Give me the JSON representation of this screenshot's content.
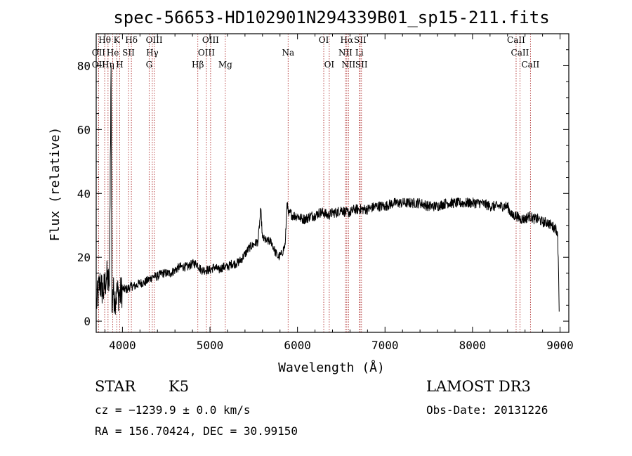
{
  "chart_data": {
    "type": "line",
    "title": "spec-56653-HD102901N294339B01_sp15-211.fits",
    "xlabel": "Wavelength (Å)",
    "ylabel": "Flux (relative)",
    "xlim": [
      3700,
      9100
    ],
    "ylim": [
      -3.5,
      90
    ],
    "xticks": [
      4000,
      5000,
      6000,
      7000,
      8000,
      9000
    ],
    "yticks": [
      0,
      20,
      40,
      60,
      80
    ],
    "grid": false,
    "series": [
      {
        "color": "#000000",
        "x": [
          3700,
          3740,
          3780,
          3820,
          3850,
          3870,
          3880,
          3890,
          3910,
          3940,
          3970,
          4000,
          4050,
          4100,
          4150,
          4200,
          4250,
          4300,
          4350,
          4400,
          4450,
          4500,
          4550,
          4600,
          4650,
          4700,
          4750,
          4800,
          4850,
          4900,
          4950,
          5000,
          5050,
          5100,
          5150,
          5200,
          5250,
          5300,
          5350,
          5400,
          5450,
          5500,
          5550,
          5580,
          5600,
          5650,
          5700,
          5740,
          5780,
          5820,
          5860,
          5880,
          5900,
          5910,
          5950,
          6000,
          6050,
          6100,
          6150,
          6200,
          6250,
          6300,
          6350,
          6400,
          6450,
          6500,
          6550,
          6600,
          6650,
          6700,
          6800,
          6900,
          7000,
          7100,
          7200,
          7300,
          7400,
          7500,
          7600,
          7700,
          7800,
          7900,
          8000,
          8100,
          8200,
          8300,
          8400,
          8450,
          8500,
          8550,
          8600,
          8650,
          8700,
          8750,
          8800,
          8850,
          8900,
          8950,
          8970,
          8980,
          8990
        ],
        "y": [
          5,
          12,
          9,
          14,
          11,
          80,
          3,
          10,
          7,
          9,
          8,
          10,
          10,
          11,
          11,
          12,
          12,
          13,
          14,
          14,
          15,
          15,
          15,
          16,
          17,
          17,
          17,
          18,
          18,
          16,
          16,
          16,
          17,
          16,
          17,
          17,
          18,
          18,
          19,
          21,
          23,
          24,
          25,
          35,
          26,
          25,
          25,
          22,
          20,
          21,
          24,
          37,
          33,
          34,
          33,
          33,
          32,
          32,
          33,
          33,
          34,
          34,
          33,
          34,
          34,
          35,
          34,
          34,
          35,
          35,
          35,
          36,
          36,
          37,
          37,
          37,
          37,
          36,
          36,
          37,
          37,
          37,
          37,
          37,
          36,
          36,
          36,
          33,
          33,
          32,
          32,
          33,
          32,
          32,
          31,
          31,
          30,
          29,
          28,
          20,
          3
        ]
      }
    ],
    "line_markers": [
      {
        "label": "Hθ",
        "x": 3797,
        "row": 1
      },
      {
        "label": "OII",
        "x": 3727,
        "row": 2
      },
      {
        "label": "OII",
        "x": 3727,
        "row": 3
      },
      {
        "label": "Hη",
        "x": 3835,
        "row": 3
      },
      {
        "label": "He",
        "x": 3889,
        "row": 2
      },
      {
        "label": "K",
        "x": 3934,
        "row": 1
      },
      {
        "label": "H",
        "x": 3969,
        "row": 3
      },
      {
        "label": "SII",
        "x": 4069,
        "row": 2
      },
      {
        "label": "Hδ",
        "x": 4102,
        "row": 1
      },
      {
        "label": "OIII",
        "x": 4363,
        "row": 1
      },
      {
        "label": "Hγ",
        "x": 4341,
        "row": 2
      },
      {
        "label": "G",
        "x": 4305,
        "row": 3
      },
      {
        "label": "Hβ",
        "x": 4861,
        "row": 3
      },
      {
        "label": "OIII",
        "x": 5007,
        "row": 1
      },
      {
        "label": "OIII",
        "x": 4959,
        "row": 2
      },
      {
        "label": "Mg",
        "x": 5175,
        "row": 3
      },
      {
        "label": "Na",
        "x": 5893,
        "row": 2
      },
      {
        "label": "OI",
        "x": 6300,
        "row": 1
      },
      {
        "label": "OI",
        "x": 6363,
        "row": 3
      },
      {
        "label": "Hα",
        "x": 6563,
        "row": 1
      },
      {
        "label": "NII",
        "x": 6548,
        "row": 2
      },
      {
        "label": "NII",
        "x": 6583,
        "row": 3
      },
      {
        "label": "SII",
        "x": 6716,
        "row": 1
      },
      {
        "label": "Li",
        "x": 6707,
        "row": 2
      },
      {
        "label": "SII",
        "x": 6731,
        "row": 3
      },
      {
        "label": "CaII",
        "x": 8498,
        "row": 1
      },
      {
        "label": "CaII",
        "x": 8542,
        "row": 2
      },
      {
        "label": "CaII",
        "x": 8662,
        "row": 3
      }
    ]
  },
  "info": {
    "object_type": "STAR",
    "subclass": "K5",
    "survey": "LAMOST DR3",
    "cz": "cz = −1239.9 ± 0.0 km/s",
    "obs_date": "Obs-Date: 20131226",
    "coords": "RA = 156.70424, DEC =  30.99150"
  }
}
